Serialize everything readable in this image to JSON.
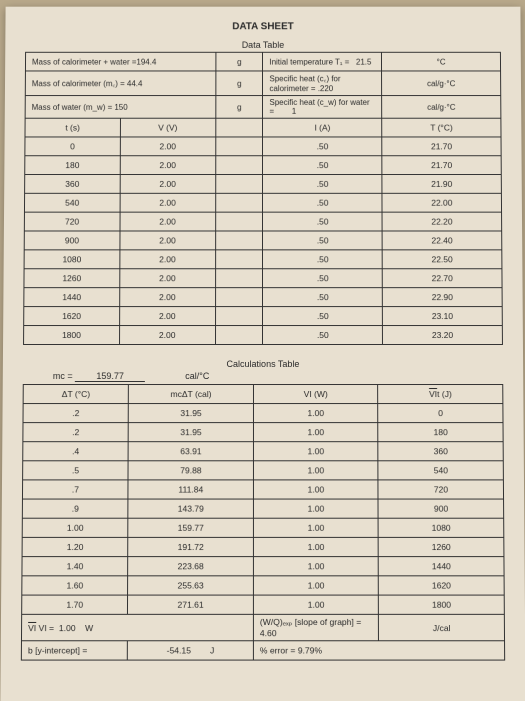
{
  "title": "DATA SHEET",
  "dataTable": {
    "heading": "Data Table",
    "meta": {
      "mass_cal_water_label": "Mass of calorimeter + water =194.4",
      "mass_cal_water_unit": "g",
      "initial_temp_label": "Initial temperature T₁ =",
      "initial_temp_val": "21.5",
      "initial_temp_unit": "°C",
      "mass_cal_label": "Mass of calorimeter (m꜀) = 44.4",
      "mass_cal_unit": "g",
      "spec_heat_cal_label": "Specific heat (c꜀) for calorimeter =",
      "spec_heat_cal_val": ".220",
      "spec_heat_cal_unit": "cal/g·°C",
      "mass_water_label": "Mass of water (m_w) = 150",
      "mass_water_unit": "g",
      "spec_heat_water_label": "Specific heat (c_w) for water =",
      "spec_heat_water_val": "1",
      "spec_heat_water_unit": "cal/g·°C"
    },
    "columns": [
      "t (s)",
      "V (V)",
      "I (A)",
      "T (°C)"
    ],
    "rows": [
      [
        "0",
        "2.00",
        ".50",
        "21.70"
      ],
      [
        "180",
        "2.00",
        ".50",
        "21.70"
      ],
      [
        "360",
        "2.00",
        ".50",
        "21.90"
      ],
      [
        "540",
        "2.00",
        ".50",
        "22.00"
      ],
      [
        "720",
        "2.00",
        ".50",
        "22.20"
      ],
      [
        "900",
        "2.00",
        ".50",
        "22.40"
      ],
      [
        "1080",
        "2.00",
        ".50",
        "22.50"
      ],
      [
        "1260",
        "2.00",
        ".50",
        "22.70"
      ],
      [
        "1440",
        "2.00",
        ".50",
        "22.90"
      ],
      [
        "1620",
        "2.00",
        ".50",
        "23.10"
      ],
      [
        "1800",
        "2.00",
        ".50",
        "23.20"
      ]
    ]
  },
  "calcTable": {
    "heading": "Calculations Table",
    "mc_label": "mc =",
    "mc_val": "159.77",
    "mc_unit": "cal/°C",
    "columns": [
      "ΔT (°C)",
      "mcΔT (cal)",
      "VI (W)",
      "VIt (J)"
    ],
    "rows": [
      [
        ".2",
        "31.95",
        "1.00",
        "0"
      ],
      [
        ".2",
        "31.95",
        "1.00",
        "180"
      ],
      [
        ".4",
        "63.91",
        "1.00",
        "360"
      ],
      [
        ".5",
        "79.88",
        "1.00",
        "540"
      ],
      [
        ".7",
        "111.84",
        "1.00",
        "720"
      ],
      [
        ".9",
        "143.79",
        "1.00",
        "900"
      ],
      [
        "1.00",
        "159.77",
        "1.00",
        "1080"
      ],
      [
        "1.20",
        "191.72",
        "1.00",
        "1260"
      ],
      [
        "1.40",
        "223.68",
        "1.00",
        "1440"
      ],
      [
        "1.60",
        "255.63",
        "1.00",
        "1620"
      ],
      [
        "1.70",
        "271.61",
        "1.00",
        "1800"
      ]
    ],
    "footer": {
      "vi_label": "VI =",
      "vi_val": "1.00",
      "vi_unit": "W",
      "slope_label": "(W/Q)ₑₓₚ [slope of graph] = 4.60",
      "slope_unit": "J/cal",
      "b_label": "b [y-intercept]  =",
      "b_val": "-54.15",
      "b_unit": "J",
      "err_label": "% error = 9.79%"
    }
  },
  "style": {
    "border_color": "#333333",
    "bg_color": "#e8e0d0",
    "text_color": "#2a2a2a",
    "font_size_body": 8.5,
    "font_size_title": 10
  }
}
